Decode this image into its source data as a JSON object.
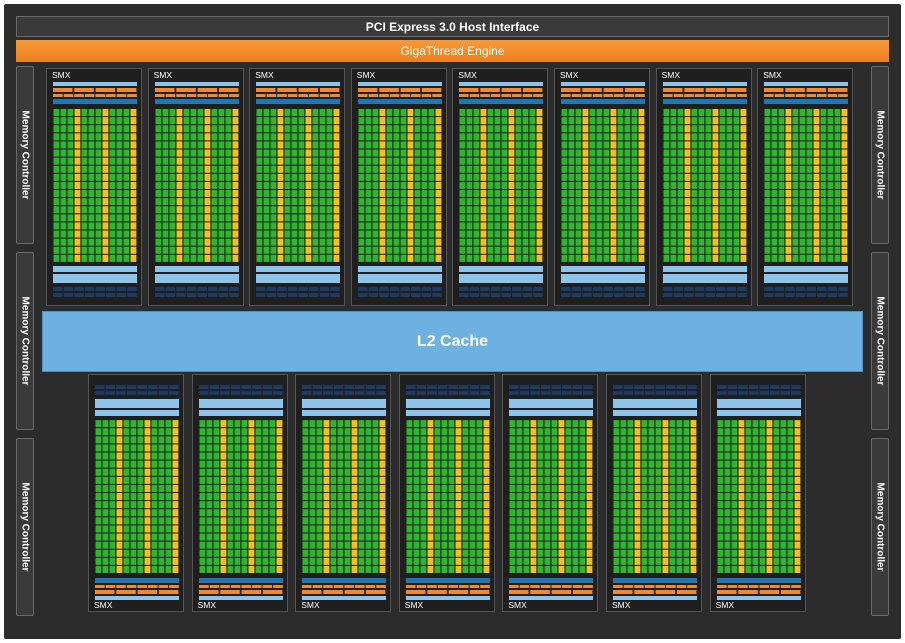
{
  "header": {
    "pcie_label": "PCI Express 3.0 Host Interface",
    "gigathread_label": "GigaThread Engine"
  },
  "l2_cache": {
    "label": "L2 Cache"
  },
  "memory_controllers": {
    "label": "Memory Controller",
    "left_count": 3,
    "right_count": 3
  },
  "smx": {
    "label": "SMX",
    "top_row_count": 8,
    "bottom_row_count": 7
  },
  "colors": {
    "chip_background": "#2c2c2c",
    "gigathread_orange": "#ee7f1c",
    "l2_blue": "#6db1e0",
    "core_green": "#2fb52f",
    "core_yellow": "#f2c21b",
    "scheduler_orange": "#f08a2c",
    "cache_blue": "#8ec4ea",
    "ldst_navy": "#1d3a63"
  }
}
